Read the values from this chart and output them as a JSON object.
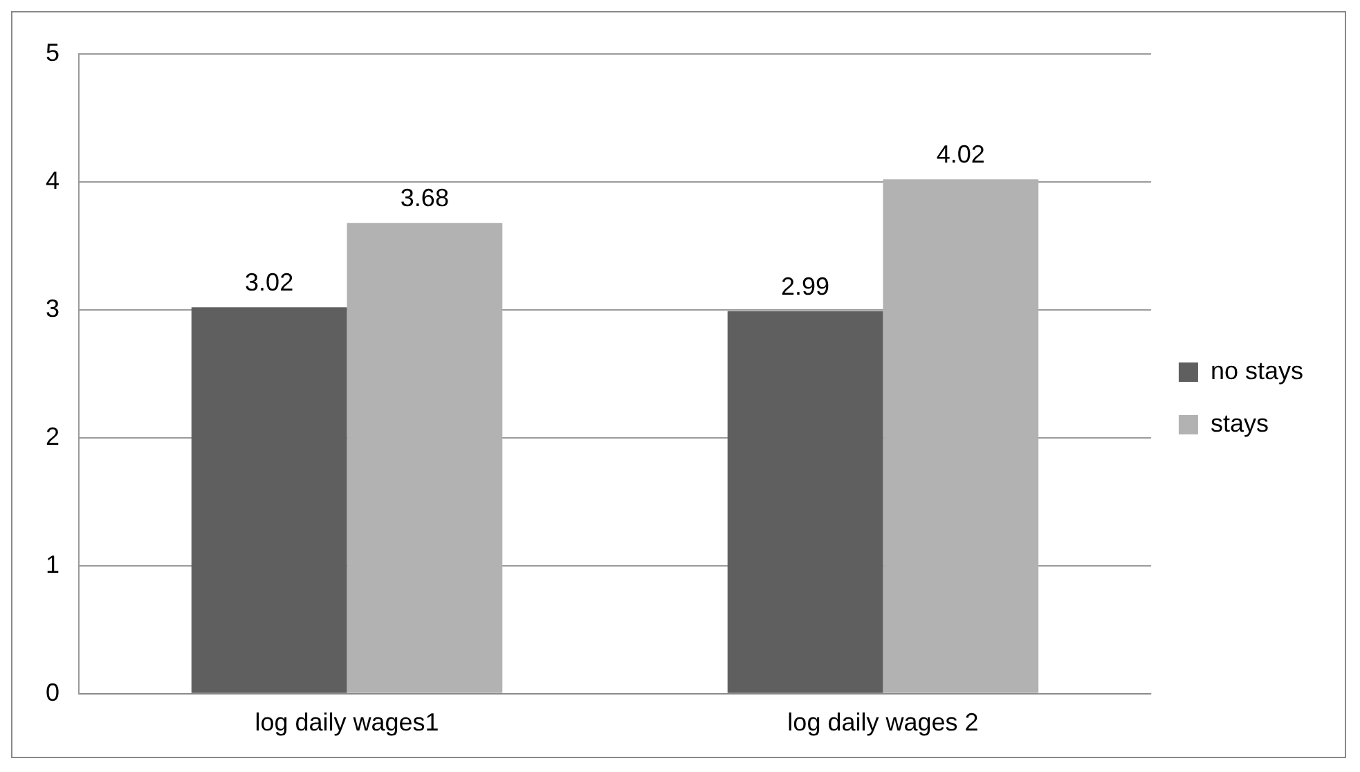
{
  "chart_data": {
    "type": "bar",
    "categories": [
      "log daily wages1",
      "log daily wages 2"
    ],
    "series": [
      {
        "name": "no stays",
        "color": "#5f5f5f",
        "values": [
          3.02,
          2.99
        ]
      },
      {
        "name": "stays",
        "color": "#b2b2b2",
        "values": [
          3.68,
          4.02
        ]
      }
    ],
    "ylim": [
      0,
      5
    ],
    "yticks": [
      0,
      1,
      2,
      3,
      4,
      5
    ],
    "grid": "y",
    "legend": "right",
    "data_labels": true
  }
}
